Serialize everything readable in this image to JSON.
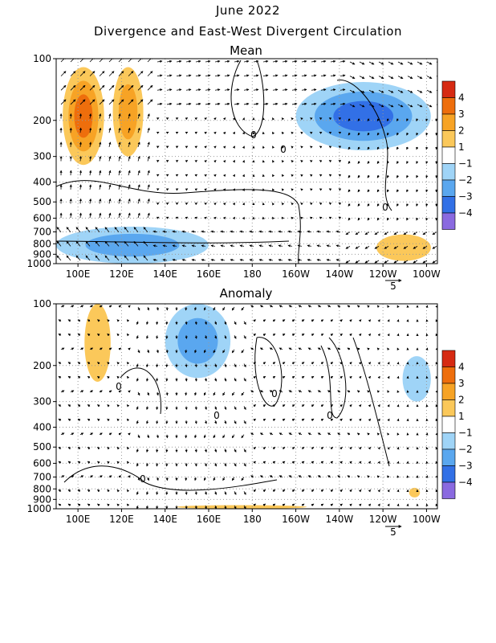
{
  "figure": {
    "title_line1": "June 2022",
    "title_line2": "Divergence and East-West Divergent Circulation"
  },
  "colorbar": {
    "levels": [
      "4",
      "3",
      "2",
      "1",
      "−1",
      "−2",
      "−3",
      "−4"
    ],
    "colors": [
      "#d62a12",
      "#ee6e0c",
      "#f7a325",
      "#fbc85a",
      "#ffffff",
      "#9fd4f7",
      "#5aa7ef",
      "#3270e6",
      "#8a6ae0"
    ]
  },
  "chart_data": [
    {
      "type": "heatmap",
      "title": "Mean",
      "x_ticks": [
        "100E",
        "120E",
        "140E",
        "160E",
        "180",
        "160W",
        "140W",
        "120W",
        "100W"
      ],
      "x_values": [
        100,
        120,
        140,
        160,
        180,
        200,
        220,
        240,
        260
      ],
      "xlim": [
        90,
        265
      ],
      "y_ticks": [
        "100",
        "200",
        "300",
        "400",
        "500",
        "600",
        "700",
        "800",
        "900",
        "1000"
      ],
      "y_values": [
        100,
        200,
        300,
        400,
        500,
        600,
        700,
        800,
        900,
        1000
      ],
      "y_scale": "log-pressure",
      "ylim": [
        1000,
        100
      ],
      "vector_reference": "5",
      "contour_labels": [
        "0",
        "0",
        "0"
      ],
      "features": [
        {
          "sign": "positive",
          "lon": [
            93,
            112
          ],
          "p": [
            110,
            330
          ],
          "max_level": 3
        },
        {
          "sign": "positive",
          "lon": [
            116,
            130
          ],
          "p": [
            110,
            300
          ],
          "max_level": 2
        },
        {
          "sign": "negative",
          "lon": [
            200,
            262
          ],
          "p": [
            130,
            280
          ],
          "max_level": -3
        },
        {
          "sign": "negative",
          "lon": [
            90,
            160
          ],
          "p": [
            660,
            1000
          ],
          "max_level": -2
        },
        {
          "sign": "positive",
          "lon": [
            237,
            262
          ],
          "p": [
            720,
            970
          ],
          "max_level": 1
        }
      ]
    },
    {
      "type": "heatmap",
      "title": "Anomaly",
      "x_ticks": [
        "100E",
        "120E",
        "140E",
        "160E",
        "180",
        "160W",
        "140W",
        "120W",
        "100W"
      ],
      "x_values": [
        100,
        120,
        140,
        160,
        180,
        200,
        220,
        240,
        260
      ],
      "xlim": [
        90,
        265
      ],
      "y_ticks": [
        "100",
        "200",
        "300",
        "400",
        "500",
        "600",
        "700",
        "800",
        "900",
        "1000"
      ],
      "y_values": [
        100,
        200,
        300,
        400,
        500,
        600,
        700,
        800,
        900,
        1000
      ],
      "y_scale": "log-pressure",
      "ylim": [
        1000,
        100
      ],
      "vector_reference": "5",
      "contour_labels": [
        "0",
        "0",
        "0",
        "0",
        "0"
      ],
      "features": [
        {
          "sign": "negative",
          "lon": [
            140,
            170
          ],
          "p": [
            100,
            230
          ],
          "max_level": -2
        },
        {
          "sign": "positive",
          "lon": [
            103,
            115
          ],
          "p": [
            100,
            240
          ],
          "max_level": 1
        },
        {
          "sign": "negative",
          "lon": [
            249,
            262
          ],
          "p": [
            180,
            300
          ],
          "max_level": -1
        },
        {
          "sign": "positive",
          "lon": [
            145,
            205
          ],
          "p": [
            960,
            1000
          ],
          "max_level": 1
        },
        {
          "sign": "positive",
          "lon": [
            252,
            257
          ],
          "p": [
            790,
            880
          ],
          "max_level": 1
        }
      ]
    }
  ]
}
